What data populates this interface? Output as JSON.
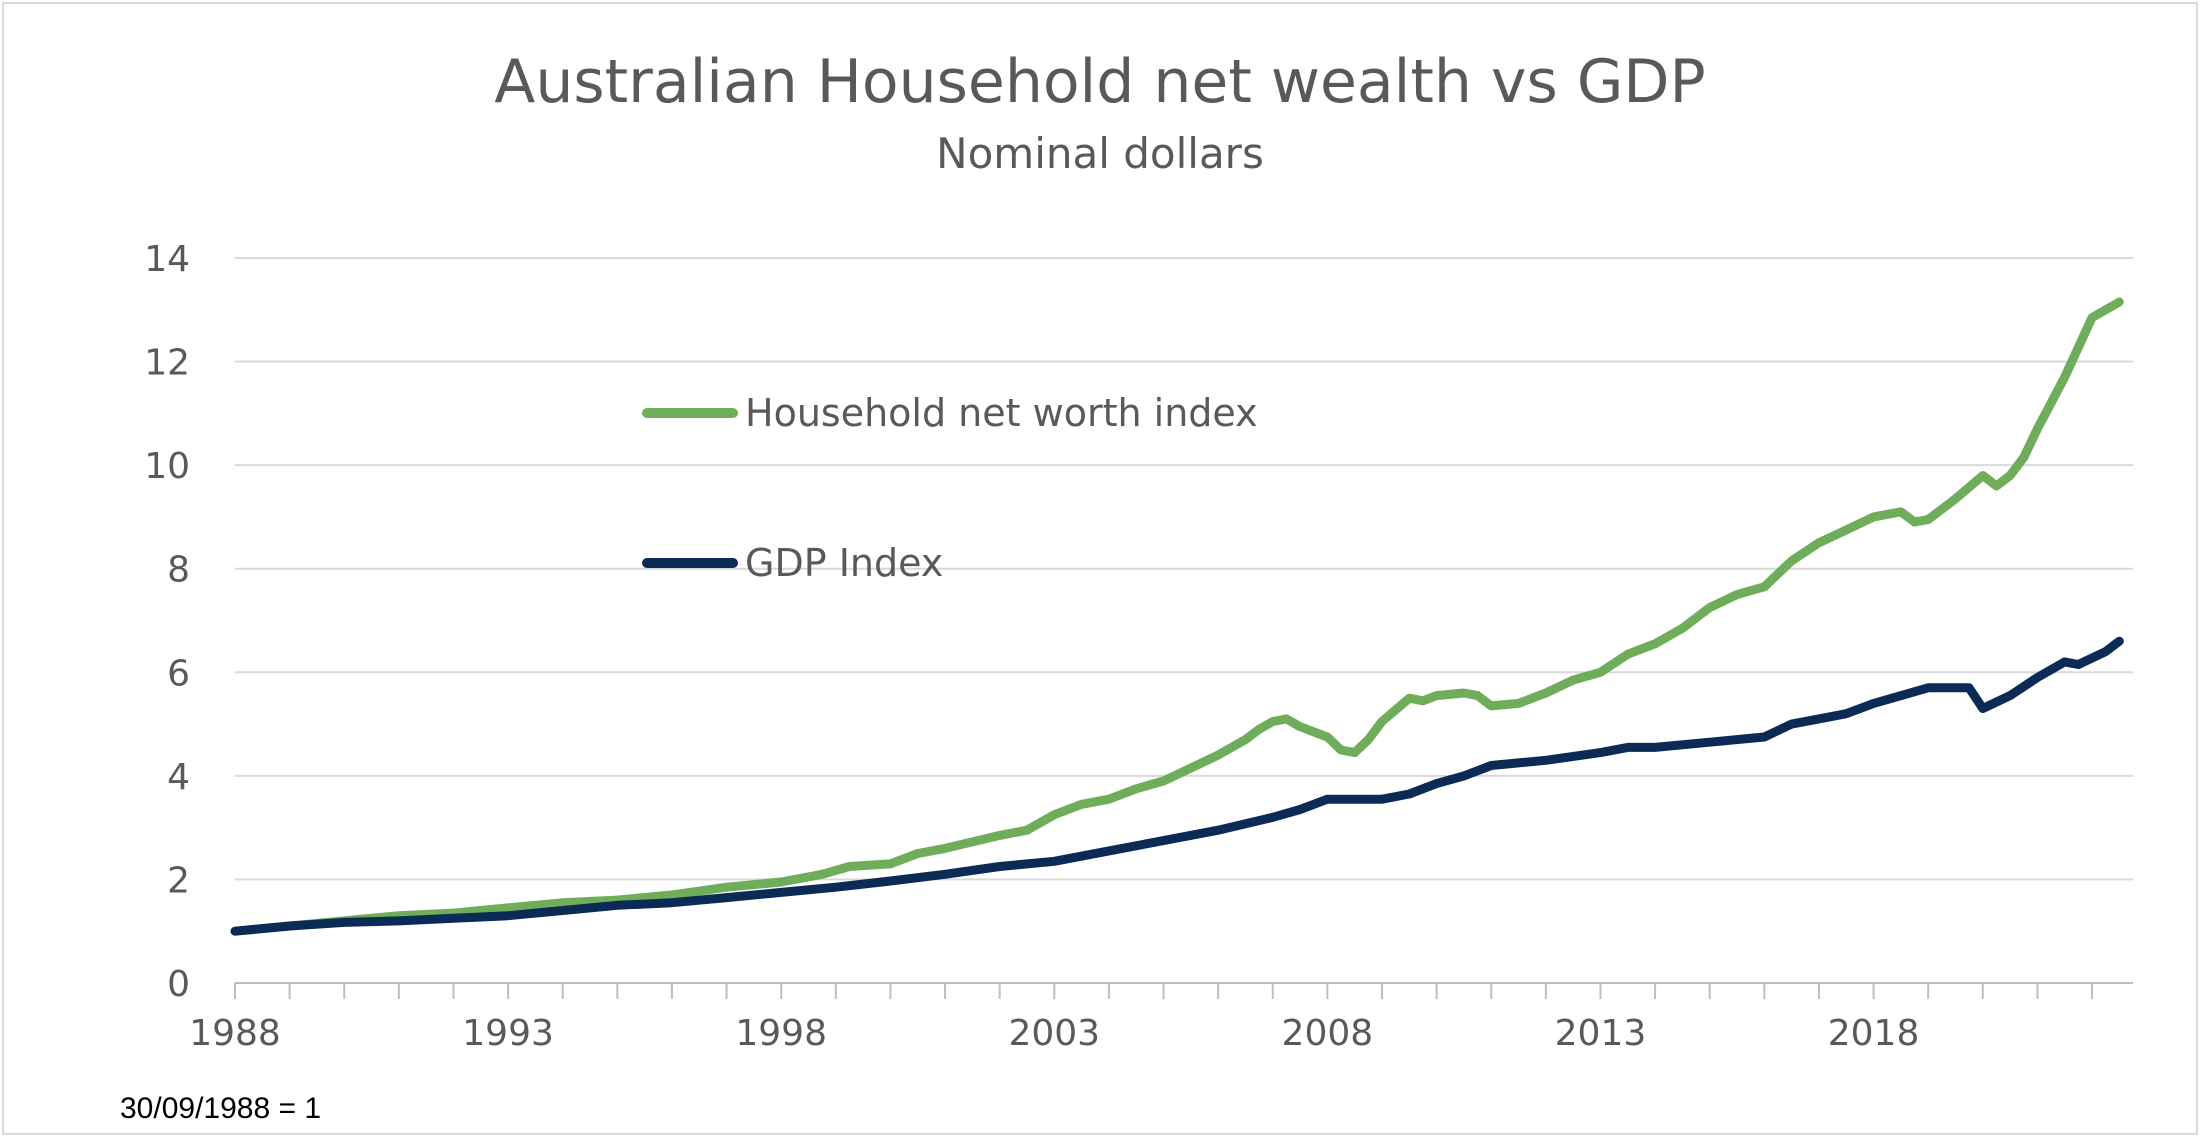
{
  "chart_data": {
    "type": "line",
    "title": "Australian Household net wealth vs GDP",
    "subtitle": "Nominal dollars",
    "note": "30/09/1988 = 1",
    "xlabel": "",
    "ylabel": "",
    "xlim": [
      1988,
      2022.75
    ],
    "ylim": [
      0,
      14
    ],
    "yticks": [
      0,
      2,
      4,
      6,
      8,
      10,
      12,
      14
    ],
    "xticks": [
      1988,
      1993,
      1998,
      2003,
      2008,
      2013,
      2018
    ],
    "ytick_labels": [
      "0",
      "2",
      "4",
      "6",
      "8",
      "10",
      "12",
      "14"
    ],
    "xtick_labels": [
      "1988",
      "1993",
      "1998",
      "2003",
      "2008",
      "2013",
      "2018"
    ],
    "grid": true,
    "legend_position": "upper-left-inside",
    "series": [
      {
        "name": "Household net worth index",
        "color": "#70ad5a",
        "points": [
          [
            1988.0,
            1.0
          ],
          [
            1989.0,
            1.1
          ],
          [
            1990.0,
            1.2
          ],
          [
            1991.0,
            1.3
          ],
          [
            1992.0,
            1.35
          ],
          [
            1993.0,
            1.45
          ],
          [
            1993.5,
            1.5
          ],
          [
            1994.0,
            1.55
          ],
          [
            1995.0,
            1.6
          ],
          [
            1996.0,
            1.7
          ],
          [
            1997.0,
            1.85
          ],
          [
            1998.0,
            1.95
          ],
          [
            1998.75,
            2.1
          ],
          [
            1999.25,
            2.25
          ],
          [
            2000.0,
            2.3
          ],
          [
            2000.5,
            2.5
          ],
          [
            2001.0,
            2.6
          ],
          [
            2002.0,
            2.85
          ],
          [
            2002.5,
            2.95
          ],
          [
            2003.0,
            3.25
          ],
          [
            2003.5,
            3.45
          ],
          [
            2004.0,
            3.55
          ],
          [
            2004.5,
            3.75
          ],
          [
            2005.0,
            3.9
          ],
          [
            2005.5,
            4.15
          ],
          [
            2006.0,
            4.4
          ],
          [
            2006.5,
            4.7
          ],
          [
            2006.75,
            4.9
          ],
          [
            2007.0,
            5.05
          ],
          [
            2007.25,
            5.1
          ],
          [
            2007.5,
            4.95
          ],
          [
            2008.0,
            4.75
          ],
          [
            2008.25,
            4.5
          ],
          [
            2008.5,
            4.45
          ],
          [
            2008.75,
            4.7
          ],
          [
            2009.0,
            5.05
          ],
          [
            2009.5,
            5.5
          ],
          [
            2009.75,
            5.45
          ],
          [
            2010.0,
            5.55
          ],
          [
            2010.5,
            5.6
          ],
          [
            2010.75,
            5.55
          ],
          [
            2011.0,
            5.35
          ],
          [
            2011.5,
            5.4
          ],
          [
            2012.0,
            5.6
          ],
          [
            2012.5,
            5.85
          ],
          [
            2013.0,
            6.0
          ],
          [
            2013.5,
            6.35
          ],
          [
            2014.0,
            6.55
          ],
          [
            2014.5,
            6.85
          ],
          [
            2015.0,
            7.25
          ],
          [
            2015.5,
            7.5
          ],
          [
            2016.0,
            7.65
          ],
          [
            2016.5,
            8.15
          ],
          [
            2017.0,
            8.5
          ],
          [
            2017.5,
            8.75
          ],
          [
            2018.0,
            9.0
          ],
          [
            2018.5,
            9.1
          ],
          [
            2018.75,
            8.9
          ],
          [
            2019.0,
            8.95
          ],
          [
            2019.5,
            9.35
          ],
          [
            2020.0,
            9.8
          ],
          [
            2020.25,
            9.6
          ],
          [
            2020.5,
            9.8
          ],
          [
            2020.75,
            10.15
          ],
          [
            2021.0,
            10.7
          ],
          [
            2021.5,
            11.7
          ],
          [
            2022.0,
            12.85
          ],
          [
            2022.5,
            13.15
          ]
        ]
      },
      {
        "name": "GDP Index",
        "color": "#0b2a55",
        "points": [
          [
            1988.0,
            1.0
          ],
          [
            1989.0,
            1.1
          ],
          [
            1990.0,
            1.17
          ],
          [
            1991.0,
            1.2
          ],
          [
            1992.0,
            1.25
          ],
          [
            1993.0,
            1.3
          ],
          [
            1994.0,
            1.4
          ],
          [
            1995.0,
            1.5
          ],
          [
            1996.0,
            1.55
          ],
          [
            1997.0,
            1.65
          ],
          [
            1998.0,
            1.75
          ],
          [
            1999.0,
            1.85
          ],
          [
            2000.0,
            1.97
          ],
          [
            2001.0,
            2.1
          ],
          [
            2002.0,
            2.25
          ],
          [
            2003.0,
            2.35
          ],
          [
            2004.0,
            2.55
          ],
          [
            2005.0,
            2.75
          ],
          [
            2006.0,
            2.95
          ],
          [
            2007.0,
            3.2
          ],
          [
            2007.5,
            3.35
          ],
          [
            2008.0,
            3.55
          ],
          [
            2008.75,
            3.55
          ],
          [
            2009.0,
            3.55
          ],
          [
            2009.5,
            3.65
          ],
          [
            2010.0,
            3.85
          ],
          [
            2010.5,
            4.0
          ],
          [
            2011.0,
            4.2
          ],
          [
            2011.5,
            4.25
          ],
          [
            2012.0,
            4.3
          ],
          [
            2013.0,
            4.45
          ],
          [
            2013.5,
            4.55
          ],
          [
            2014.0,
            4.55
          ],
          [
            2015.0,
            4.65
          ],
          [
            2016.0,
            4.75
          ],
          [
            2016.5,
            5.0
          ],
          [
            2017.0,
            5.1
          ],
          [
            2017.5,
            5.2
          ],
          [
            2018.0,
            5.4
          ],
          [
            2019.0,
            5.7
          ],
          [
            2019.75,
            5.7
          ],
          [
            2020.0,
            5.3
          ],
          [
            2020.5,
            5.55
          ],
          [
            2021.0,
            5.9
          ],
          [
            2021.5,
            6.2
          ],
          [
            2021.75,
            6.15
          ],
          [
            2022.25,
            6.4
          ],
          [
            2022.5,
            6.6
          ]
        ]
      }
    ]
  }
}
